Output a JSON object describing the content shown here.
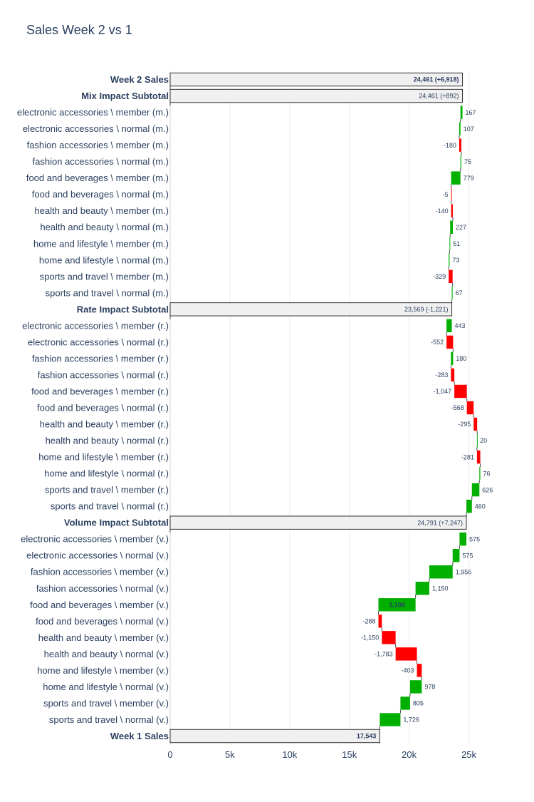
{
  "chart_data": {
    "type": "waterfall",
    "orientation": "horizontal",
    "title": "Sales Week 2 vs 1",
    "x_ticks": [
      {
        "value": 0,
        "label": "0"
      },
      {
        "value": 5000,
        "label": "5k"
      },
      {
        "value": 10000,
        "label": "10k"
      },
      {
        "value": 15000,
        "label": "15k"
      },
      {
        "value": 20000,
        "label": "20k"
      },
      {
        "value": 25000,
        "label": "25k"
      }
    ],
    "xlim": [
      0,
      25800
    ],
    "grid": true,
    "colors": {
      "increase": "#00b000",
      "decrease": "#ff0000",
      "total": "#f0f0f0",
      "total_border": "#333333"
    },
    "rows": [
      {
        "label": "Week 2 Sales",
        "kind": "total",
        "start": 0,
        "end": 24461,
        "text": "24,461 (+6,918)"
      },
      {
        "label": "Mix Impact Subtotal",
        "kind": "total",
        "start": 0,
        "end": 24461,
        "text": "24,461 (+892)"
      },
      {
        "label": "electronic accessories \\ member (m.)",
        "kind": "delta",
        "start": 24294,
        "end": 24461,
        "text": "167"
      },
      {
        "label": "electronic accessories \\ normal (m.)",
        "kind": "delta",
        "start": 24187,
        "end": 24294,
        "text": "107"
      },
      {
        "label": "fashion accessories \\ member (m.)",
        "kind": "delta",
        "start": 24367,
        "end": 24187,
        "text": "-180"
      },
      {
        "label": "fashion accessories \\ normal (m.)",
        "kind": "delta",
        "start": 24292,
        "end": 24367,
        "text": "75"
      },
      {
        "label": "food and beverages \\ member (m.)",
        "kind": "delta",
        "start": 23513,
        "end": 24292,
        "text": "779"
      },
      {
        "label": "food and beverages \\ normal (m.)",
        "kind": "delta",
        "start": 23518,
        "end": 23513,
        "text": "-5"
      },
      {
        "label": "health and beauty \\ member (m.)",
        "kind": "delta",
        "start": 23658,
        "end": 23518,
        "text": "-140"
      },
      {
        "label": "health and beauty \\ normal (m.)",
        "kind": "delta",
        "start": 23431,
        "end": 23658,
        "text": "227"
      },
      {
        "label": "home and lifestyle \\ member (m.)",
        "kind": "delta",
        "start": 23380,
        "end": 23431,
        "text": "51"
      },
      {
        "label": "home and lifestyle \\ normal (m.)",
        "kind": "delta",
        "start": 23307,
        "end": 23380,
        "text": "73"
      },
      {
        "label": "sports and travel \\ member (m.)",
        "kind": "delta",
        "start": 23636,
        "end": 23307,
        "text": "-329"
      },
      {
        "label": "sports and travel \\ normal (m.)",
        "kind": "delta",
        "start": 23569,
        "end": 23636,
        "text": "67"
      },
      {
        "label": "Rate Impact Subtotal",
        "kind": "total",
        "start": 0,
        "end": 23569,
        "text": "23,569 (-1,221)"
      },
      {
        "label": "electronic accessories \\ member (r.)",
        "kind": "delta",
        "start": 23126,
        "end": 23569,
        "text": "443"
      },
      {
        "label": "electronic accessories \\ normal (r.)",
        "kind": "delta",
        "start": 23678,
        "end": 23126,
        "text": "-552"
      },
      {
        "label": "fashion accessories \\ member (r.)",
        "kind": "delta",
        "start": 23498,
        "end": 23678,
        "text": "180"
      },
      {
        "label": "fashion accessories \\ normal (r.)",
        "kind": "delta",
        "start": 23781,
        "end": 23498,
        "text": "-283"
      },
      {
        "label": "food and beverages \\ member (r.)",
        "kind": "delta",
        "start": 24828,
        "end": 23781,
        "text": "-1,047"
      },
      {
        "label": "food and beverages \\ normal (r.)",
        "kind": "delta",
        "start": 25396,
        "end": 24828,
        "text": "-568"
      },
      {
        "label": "health and beauty \\ member (r.)",
        "kind": "delta",
        "start": 25691,
        "end": 25396,
        "text": "-295"
      },
      {
        "label": "health and beauty \\ normal (r.)",
        "kind": "delta",
        "start": 25671,
        "end": 25691,
        "text": "20"
      },
      {
        "label": "home and lifestyle \\ member (r.)",
        "kind": "delta",
        "start": 25952,
        "end": 25671,
        "text": "-281"
      },
      {
        "label": "home and lifestyle \\ normal (r.)",
        "kind": "delta",
        "start": 25876,
        "end": 25952,
        "text": "76"
      },
      {
        "label": "sports and travel \\ member (r.)",
        "kind": "delta",
        "start": 25250,
        "end": 25876,
        "text": "626"
      },
      {
        "label": "sports and travel \\ normal (r.)",
        "kind": "delta",
        "start": 24790,
        "end": 25250,
        "text": "460"
      },
      {
        "label": "Volume Impact Subtotal",
        "kind": "total",
        "start": 0,
        "end": 24791,
        "text": "24,791 (+7,247)"
      },
      {
        "label": "electronic accessories \\ member (v.)",
        "kind": "delta",
        "start": 24216,
        "end": 24791,
        "text": "575"
      },
      {
        "label": "electronic accessories \\ normal (v.)",
        "kind": "delta",
        "start": 23641,
        "end": 24216,
        "text": "575"
      },
      {
        "label": "fashion accessories \\ member (v.)",
        "kind": "delta",
        "start": 21685,
        "end": 23641,
        "text": "1,956"
      },
      {
        "label": "fashion accessories \\ normal (v.)",
        "kind": "delta",
        "start": 20535,
        "end": 21685,
        "text": "1,150"
      },
      {
        "label": "food and beverages \\ member (v.)",
        "kind": "delta",
        "start": 17429,
        "end": 20535,
        "text": "3,106"
      },
      {
        "label": "food and beverages \\ normal (v.)",
        "kind": "delta",
        "start": 17717,
        "end": 17429,
        "text": "-288"
      },
      {
        "label": "health and beauty \\ member (v.)",
        "kind": "delta",
        "start": 18867,
        "end": 17717,
        "text": "-1,150"
      },
      {
        "label": "health and beauty \\ normal (v.)",
        "kind": "delta",
        "start": 20650,
        "end": 18867,
        "text": "-1,783"
      },
      {
        "label": "home and lifestyle \\ member (v.)",
        "kind": "delta",
        "start": 21053,
        "end": 20650,
        "text": "-403"
      },
      {
        "label": "home and lifestyle \\ normal (v.)",
        "kind": "delta",
        "start": 20075,
        "end": 21053,
        "text": "978"
      },
      {
        "label": "sports and travel \\ member (v.)",
        "kind": "delta",
        "start": 19270,
        "end": 20075,
        "text": "805"
      },
      {
        "label": "sports and travel \\ normal (v.)",
        "kind": "delta",
        "start": 17544,
        "end": 19270,
        "text": "1,726"
      },
      {
        "label": "Week 1 Sales",
        "kind": "total",
        "start": 0,
        "end": 17543,
        "text": "17,543"
      }
    ]
  }
}
